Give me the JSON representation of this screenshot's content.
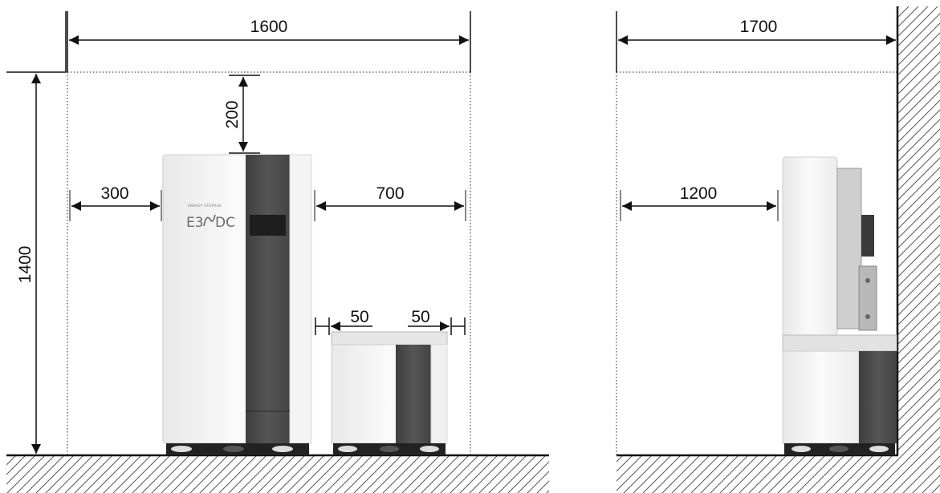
{
  "dimensions": {
    "front_width": "1600",
    "side_width": "1700",
    "height": "1400",
    "top_clearance": "200",
    "left_clearance": "300",
    "right_clearance": "700",
    "gap_left": "50",
    "gap_right": "50",
    "side_front_clearance": "1200"
  },
  "logo": {
    "brand": "E3/DC",
    "tagline": "ENERGY STORAGE"
  },
  "colors": {
    "line": "#111111",
    "cabinet_white": "#f2f2f2",
    "cabinet_dark": "#4a4a4a",
    "hatch": "#555555"
  }
}
